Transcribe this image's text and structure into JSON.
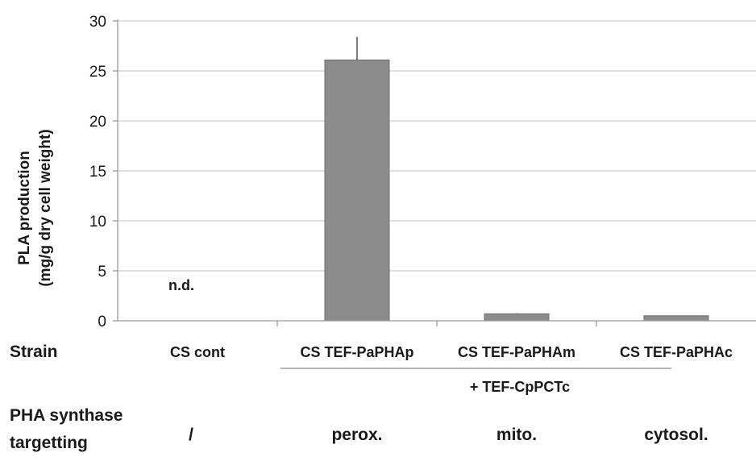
{
  "chart_data": {
    "type": "bar",
    "ylabel": [
      "PLA production",
      "(mg/g dry cell weight)"
    ],
    "ylim": [
      0,
      30
    ],
    "yticks": [
      0,
      5,
      10,
      15,
      20,
      25,
      30
    ],
    "grid": true,
    "categories": [
      "CS cont",
      "CS TEF-PaPHAp",
      "CS TEF-PaPHAm",
      "CS TEF-PaPHAc"
    ],
    "values": [
      0,
      26.1,
      0.7,
      0.5
    ],
    "error_upper": [
      null,
      2.3,
      0.05,
      null
    ],
    "data_labels": [
      "n.d.",
      "",
      "",
      ""
    ],
    "bar_color": "#8c8c8c",
    "strain_label": "Strain",
    "group_note": "+ TEF-CpPCTc",
    "targeting": {
      "label_line1": "PHA synthase",
      "label_line2": "targetting",
      "values": [
        "/",
        "perox.",
        "mito.",
        "cytosol."
      ]
    }
  }
}
